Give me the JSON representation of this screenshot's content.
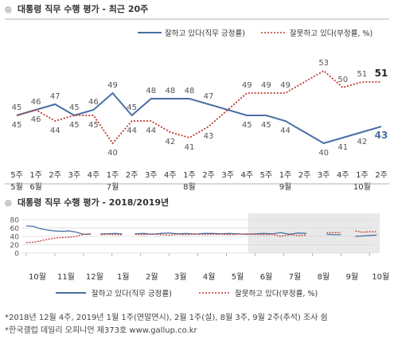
{
  "top": {
    "title": "대통령 직무 수행 평가 - 최근 20주",
    "legend": {
      "approve": "잘하고 있다(직무 긍정률)",
      "disapprove": "잘못하고 있다(부정률, %)"
    }
  },
  "bottom": {
    "title": "대통령 직무 수행 평가 - 2018/2019년",
    "legend": {
      "approve": "잘하고 있다(직무 긍정률)",
      "disapprove": "잘못하고 있다(부정률, %)"
    }
  },
  "footnotes": [
    "*2018년 12월 4주, 2019년 1월 1주(연말연시), 2월 1주(설), 8월 3주, 9월 2주(추석) 조사 쉼",
    "*한국갤럽 데일리 오피니언 제373호 www.gallup.co.kr"
  ],
  "colors": {
    "approve": "#4a6fa5",
    "disapprove": "#c0392b",
    "shade": "#e9e9e9",
    "grid": "#d9d9d9"
  },
  "chart_data": [
    {
      "type": "line",
      "title": "대통령 직무 수행 평가 - 최근 20주",
      "categories": [
        "5주",
        "1주",
        "2주",
        "3주",
        "4주",
        "1주",
        "2주",
        "3주",
        "4주",
        "1주",
        "2주",
        "3주",
        "4주",
        "5주",
        "1주",
        "2주",
        "3주",
        "4주",
        "1주",
        "2주"
      ],
      "month_labels": [
        {
          "index": 0,
          "label": "5월"
        },
        {
          "index": 1,
          "label": "6월"
        },
        {
          "index": 5,
          "label": "7월"
        },
        {
          "index": 9,
          "label": "8월"
        },
        {
          "index": 14,
          "label": "9월"
        },
        {
          "index": 18,
          "label": "10월"
        }
      ],
      "ylim": [
        35,
        55
      ],
      "grid": false,
      "legend": "top-right",
      "series": [
        {
          "key": "approve",
          "name": "잘하고 있다(직무 긍정률)",
          "values": [
            45,
            46,
            47,
            45,
            46,
            49,
            45,
            48,
            48,
            48,
            47,
            null,
            45,
            45,
            44,
            null,
            40,
            41,
            42,
            43
          ],
          "labels": [
            "45",
            "46",
            "47",
            "45",
            "46",
            "49",
            "45",
            "48",
            "48",
            "48",
            "47",
            null,
            "45",
            "45",
            "44",
            null,
            "40",
            "41",
            "42",
            "43"
          ]
        },
        {
          "key": "disapprove",
          "name": "잘못하고 있다(부정률, %)",
          "values": [
            45,
            46,
            44,
            45,
            45,
            40,
            44,
            44,
            42,
            41,
            43,
            null,
            49,
            49,
            49,
            null,
            53,
            50,
            51,
            51
          ],
          "labels": [
            "45",
            "46",
            "44",
            "45",
            "45",
            "40",
            "44",
            "44",
            "42",
            "41",
            "43",
            null,
            "49",
            "49",
            "49",
            null,
            "53",
            "50",
            "51",
            "51"
          ]
        }
      ]
    },
    {
      "type": "line",
      "title": "대통령 직무 수행 평가 - 2018/2019년",
      "x_months": [
        "10월",
        "11월",
        "12월",
        "1월",
        "2월",
        "3월",
        "4월",
        "5월",
        "6월",
        "7월",
        "8월",
        "9월",
        "10월"
      ],
      "yticks": [
        0,
        20,
        40,
        60,
        80
      ],
      "ylim": [
        0,
        80
      ],
      "grid": true,
      "shaded_range_months": [
        "5월",
        "10월"
      ],
      "legend": "bottom",
      "series": [
        {
          "key": "approve",
          "name": "잘하고 있다(직무 긍정률)",
          "segments": [
            [
              [
                0,
                65
              ],
              [
                0.25,
                64
              ],
              [
                0.5,
                58
              ],
              [
                0.75,
                55
              ],
              [
                1,
                53
              ],
              [
                1.25,
                52
              ],
              [
                1.5,
                53
              ],
              [
                1.75,
                50
              ],
              [
                2,
                45
              ],
              [
                2.25,
                45
              ]
            ],
            [
              [
                2.6,
                46
              ],
              [
                2.85,
                46
              ],
              [
                3.1,
                47
              ],
              [
                3.35,
                46
              ]
            ],
            [
              [
                3.8,
                46
              ],
              [
                4.1,
                47
              ],
              [
                4.4,
                45
              ],
              [
                4.7,
                47
              ],
              [
                5,
                48
              ],
              [
                5.3,
                46
              ],
              [
                5.6,
                47
              ],
              [
                5.9,
                45
              ],
              [
                6.2,
                47
              ],
              [
                6.5,
                47
              ],
              [
                6.8,
                46
              ],
              [
                7.1,
                47
              ],
              [
                7.4,
                46
              ],
              [
                7.7,
                45
              ],
              [
                8,
                46
              ],
              [
                8.3,
                47
              ],
              [
                8.6,
                46
              ],
              [
                8.9,
                49
              ],
              [
                9.2,
                45
              ],
              [
                9.5,
                48
              ],
              [
                9.8,
                47
              ]
            ],
            [
              [
                10.5,
                45
              ],
              [
                10.75,
                44
              ],
              [
                11.0,
                44
              ]
            ],
            [
              [
                11.5,
                40
              ],
              [
                11.75,
                41
              ],
              [
                12.0,
                42
              ],
              [
                12.25,
                43
              ]
            ]
          ]
        },
        {
          "key": "disapprove",
          "name": "잘못하고 있다(부정률, %)",
          "segments": [
            [
              [
                0,
                25
              ],
              [
                0.25,
                26
              ],
              [
                0.5,
                29
              ],
              [
                0.75,
                33
              ],
              [
                1,
                36
              ],
              [
                1.25,
                37
              ],
              [
                1.5,
                38
              ],
              [
                1.75,
                40
              ],
              [
                2,
                45
              ],
              [
                2.25,
                46
              ]
            ],
            [
              [
                2.6,
                44
              ],
              [
                2.85,
                45
              ],
              [
                3.1,
                44
              ],
              [
                3.35,
                44
              ]
            ],
            [
              [
                3.8,
                45
              ],
              [
                4.1,
                44
              ],
              [
                4.4,
                46
              ],
              [
                4.7,
                44
              ],
              [
                5,
                43
              ],
              [
                5.3,
                45
              ],
              [
                5.6,
                44
              ],
              [
                5.9,
                46
              ],
              [
                6.2,
                44
              ],
              [
                6.5,
                45
              ],
              [
                6.8,
                45
              ],
              [
                7.1,
                44
              ],
              [
                7.4,
                45
              ],
              [
                7.7,
                46
              ],
              [
                8,
                45
              ],
              [
                8.3,
                44
              ],
              [
                8.6,
                45
              ],
              [
                8.9,
                40
              ],
              [
                9.2,
                44
              ],
              [
                9.5,
                42
              ],
              [
                9.8,
                43
              ]
            ],
            [
              [
                10.5,
                49
              ],
              [
                10.75,
                49
              ],
              [
                11.0,
                49
              ]
            ],
            [
              [
                11.5,
                53
              ],
              [
                11.75,
                50
              ],
              [
                12.0,
                51
              ],
              [
                12.25,
                51
              ]
            ]
          ]
        }
      ]
    }
  ]
}
